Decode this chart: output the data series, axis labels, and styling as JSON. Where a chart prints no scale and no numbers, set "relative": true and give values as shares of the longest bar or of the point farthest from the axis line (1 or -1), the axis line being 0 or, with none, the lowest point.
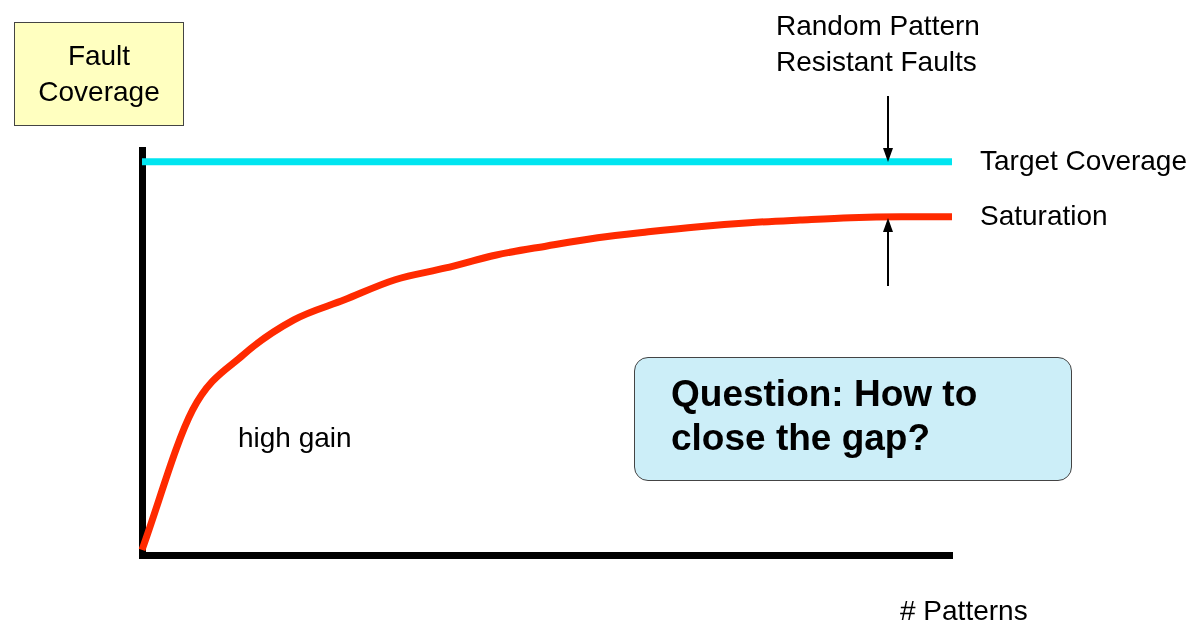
{
  "chart_data": {
    "type": "line",
    "relative": true,
    "xlabel": "# Patterns",
    "ylabel": "Fault Coverage",
    "categories": [
      null,
      null,
      null,
      null,
      null,
      null,
      null,
      null,
      null,
      null,
      null,
      null,
      null,
      null,
      null,
      null,
      null
    ],
    "series": [
      {
        "name": "Target Coverage",
        "color": "#00e5f0",
        "values": [
          1,
          1,
          1,
          1,
          1,
          1,
          1,
          1,
          1,
          1,
          1,
          1,
          1,
          1,
          1,
          1,
          1
        ]
      },
      {
        "name": "Saturation",
        "color": "#ff2a00",
        "values": [
          0.013,
          0.369,
          0.509,
          0.598,
          0.649,
          0.7,
          0.73,
          0.763,
          0.786,
          0.807,
          0.822,
          0.835,
          0.845,
          0.852,
          0.858,
          0.86,
          0.86
        ]
      }
    ],
    "annotations": [
      "Random Pattern Resistant Faults",
      "high gain",
      "Question: How to close the gap?"
    ],
    "legend": false,
    "grid": false,
    "marker": "none",
    "line_style": "solid"
  }
}
